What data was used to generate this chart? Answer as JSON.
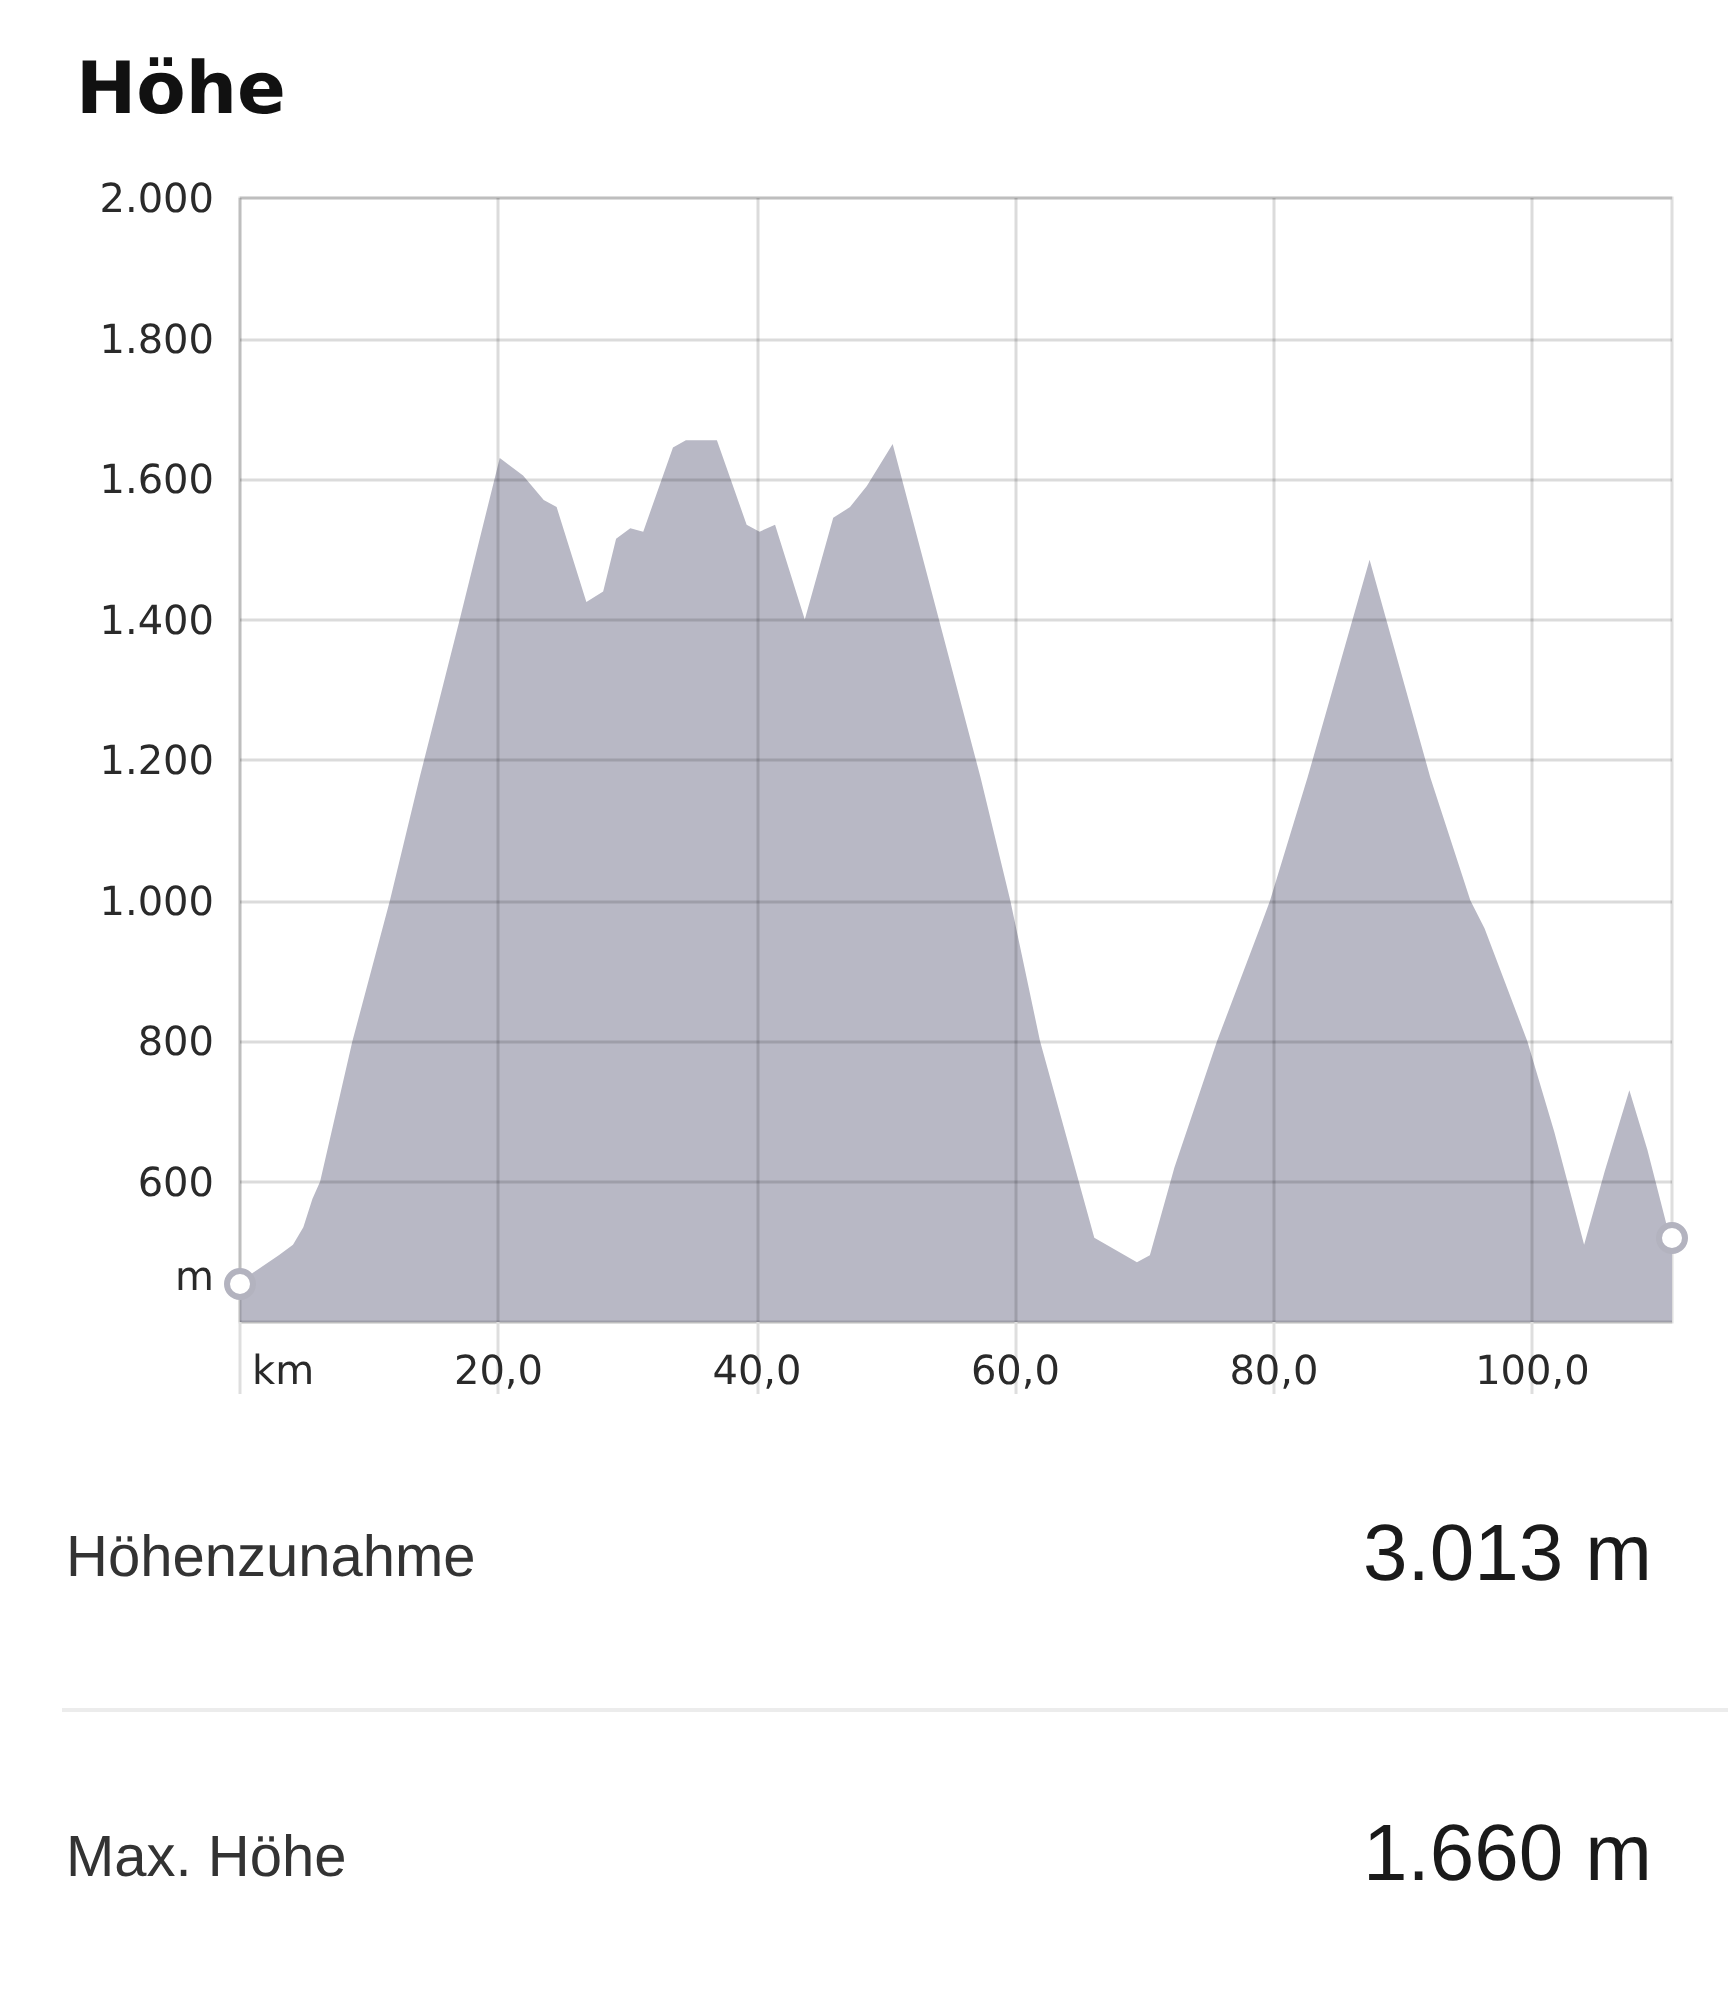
{
  "chart_data": {
    "type": "area",
    "title": "Höhe",
    "xlabel": "km",
    "ylabel": "m",
    "x": [
      0,
      1.0,
      3.0,
      4.1,
      4.9,
      5.6,
      6.2,
      8.7,
      11.6,
      13.9,
      17.0,
      20.1,
      21.9,
      23.5,
      24.5,
      26.8,
      28.1,
      29.1,
      30.2,
      31.2,
      33.5,
      34.5,
      36.9,
      39.2,
      40.2,
      41.4,
      43.7,
      45.9,
      47.2,
      48.5,
      49.0,
      50.5,
      57.3,
      59.6,
      61.9,
      66.1,
      69.4,
      70.4,
      72.3,
      75.6,
      79.0,
      79.7,
      82.6,
      87.4,
      92.1,
      95.2,
      96.3,
      99.6,
      101.7,
      104.0,
      105.6,
      107.5,
      108.9,
      110.5,
      110.8
    ],
    "values": [
      455,
      470,
      495,
      510,
      535,
      575,
      600,
      800,
      1000,
      1175,
      1400,
      1630,
      1605,
      1570,
      1560,
      1425,
      1440,
      1515,
      1530,
      1525,
      1645,
      1655,
      1655,
      1535,
      1525,
      1535,
      1400,
      1545,
      1560,
      1590,
      1605,
      1650,
      1175,
      1000,
      800,
      520,
      485,
      495,
      620,
      800,
      965,
      1000,
      1175,
      1485,
      1175,
      1000,
      960,
      800,
      670,
      510,
      615,
      730,
      645,
      530,
      520
    ],
    "color": "#b8b8c5",
    "xlim": [
      0,
      110.8
    ],
    "ylim": [
      400,
      2000
    ],
    "xticks": [
      {
        "value": 0,
        "label": null
      },
      {
        "value": 20,
        "label": "20,0"
      },
      {
        "value": 40,
        "label": "40,0"
      },
      {
        "value": 60,
        "label": "60,0"
      },
      {
        "value": 80,
        "label": "80,0"
      },
      {
        "value": 100,
        "label": "100,0"
      }
    ],
    "yticks": [
      {
        "value": 400,
        "label": null
      },
      600,
      800,
      {
        "value": 1000,
        "label": "1.000"
      },
      {
        "value": 1200,
        "label": "1.200"
      },
      {
        "value": 1400,
        "label": "1.400"
      },
      {
        "value": 1600,
        "label": "1.600"
      },
      {
        "value": 1800,
        "label": "1.800"
      },
      {
        "value": 2000,
        "label": "2.000"
      }
    ],
    "grid": true,
    "annotations": [
      "Höhenzunahme",
      "3.013 m",
      "Max. Höhe",
      "1.660 m"
    ]
  }
}
